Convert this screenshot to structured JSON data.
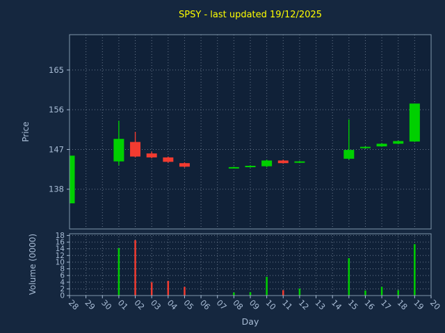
{
  "colors": {
    "figure_bg": "#15273f",
    "axes_bg": "#102138",
    "title": "#ffff00",
    "text": "#a9bdd6",
    "grid": "#68788c",
    "spine": "#8198ad",
    "up": "#00d000",
    "down": "#f23b30"
  },
  "chart_data": [
    {
      "type": "candlestick",
      "title": "SPSY - last updated 19/12/2025",
      "ylabel": "Price",
      "xlabel": "",
      "ylim": [
        129,
        173
      ],
      "yticks": [
        138,
        147,
        156,
        165
      ],
      "grid": true,
      "legend": false,
      "categories": [
        "28",
        "29",
        "30",
        "01",
        "02",
        "03",
        "04",
        "05",
        "06",
        "07",
        "08",
        "09",
        "10",
        "11",
        "12",
        "13",
        "14",
        "15",
        "16",
        "17",
        "18",
        "19",
        "20"
      ],
      "candles": [
        {
          "day": "28",
          "open": 134.8,
          "high": 145.6,
          "low": 134.8,
          "close": 145.6
        },
        {
          "day": "01",
          "open": 144.3,
          "high": 153.5,
          "low": 143.4,
          "close": 149.4
        },
        {
          "day": "02",
          "open": 148.7,
          "high": 151.0,
          "low": 145.2,
          "close": 145.4
        },
        {
          "day": "03",
          "open": 146.1,
          "high": 146.5,
          "low": 145.0,
          "close": 145.2
        },
        {
          "day": "04",
          "open": 145.2,
          "high": 145.4,
          "low": 144.0,
          "close": 144.2
        },
        {
          "day": "05",
          "open": 143.9,
          "high": 144.1,
          "low": 142.9,
          "close": 143.1
        },
        {
          "day": "08",
          "open": 142.8,
          "high": 143.1,
          "low": 142.7,
          "close": 143.0
        },
        {
          "day": "09",
          "open": 143.0,
          "high": 143.4,
          "low": 142.9,
          "close": 143.3
        },
        {
          "day": "10",
          "open": 143.2,
          "high": 144.7,
          "low": 143.0,
          "close": 144.5
        },
        {
          "day": "11",
          "open": 144.5,
          "high": 144.7,
          "low": 143.8,
          "close": 143.9
        },
        {
          "day": "12",
          "open": 144.0,
          "high": 144.4,
          "low": 143.9,
          "close": 144.3
        },
        {
          "day": "15",
          "open": 144.9,
          "high": 153.8,
          "low": 144.7,
          "close": 146.9
        },
        {
          "day": "16",
          "open": 147.3,
          "high": 147.7,
          "low": 147.2,
          "close": 147.6
        },
        {
          "day": "17",
          "open": 147.7,
          "high": 148.4,
          "low": 147.6,
          "close": 148.3
        },
        {
          "day": "18",
          "open": 148.3,
          "high": 149.0,
          "low": 148.2,
          "close": 148.9
        },
        {
          "day": "19",
          "open": 148.8,
          "high": 157.4,
          "low": 148.7,
          "close": 157.4
        }
      ]
    },
    {
      "type": "bar",
      "ylabel": "Volume (0000)",
      "xlabel": "Day",
      "ylim": [
        0,
        18.5
      ],
      "yticks": [
        0,
        2,
        4,
        6,
        8,
        10,
        12,
        14,
        16,
        18
      ],
      "grid": true,
      "categories": [
        "28",
        "29",
        "30",
        "01",
        "02",
        "03",
        "04",
        "05",
        "06",
        "07",
        "08",
        "09",
        "10",
        "11",
        "12",
        "13",
        "14",
        "15",
        "16",
        "17",
        "18",
        "19",
        "20"
      ],
      "bars": [
        {
          "day": "01",
          "value": 14.2,
          "direction": "up"
        },
        {
          "day": "02",
          "value": 16.6,
          "direction": "down"
        },
        {
          "day": "03",
          "value": 4.0,
          "direction": "down"
        },
        {
          "day": "04",
          "value": 4.4,
          "direction": "down"
        },
        {
          "day": "05",
          "value": 2.6,
          "direction": "down"
        },
        {
          "day": "08",
          "value": 0.9,
          "direction": "up"
        },
        {
          "day": "09",
          "value": 1.0,
          "direction": "up"
        },
        {
          "day": "10",
          "value": 5.6,
          "direction": "up"
        },
        {
          "day": "11",
          "value": 1.6,
          "direction": "down"
        },
        {
          "day": "12",
          "value": 2.1,
          "direction": "up"
        },
        {
          "day": "15",
          "value": 11.2,
          "direction": "up"
        },
        {
          "day": "16",
          "value": 1.5,
          "direction": "up"
        },
        {
          "day": "17",
          "value": 2.6,
          "direction": "up"
        },
        {
          "day": "18",
          "value": 1.6,
          "direction": "up"
        },
        {
          "day": "19",
          "value": 15.4,
          "direction": "up"
        }
      ]
    }
  ]
}
